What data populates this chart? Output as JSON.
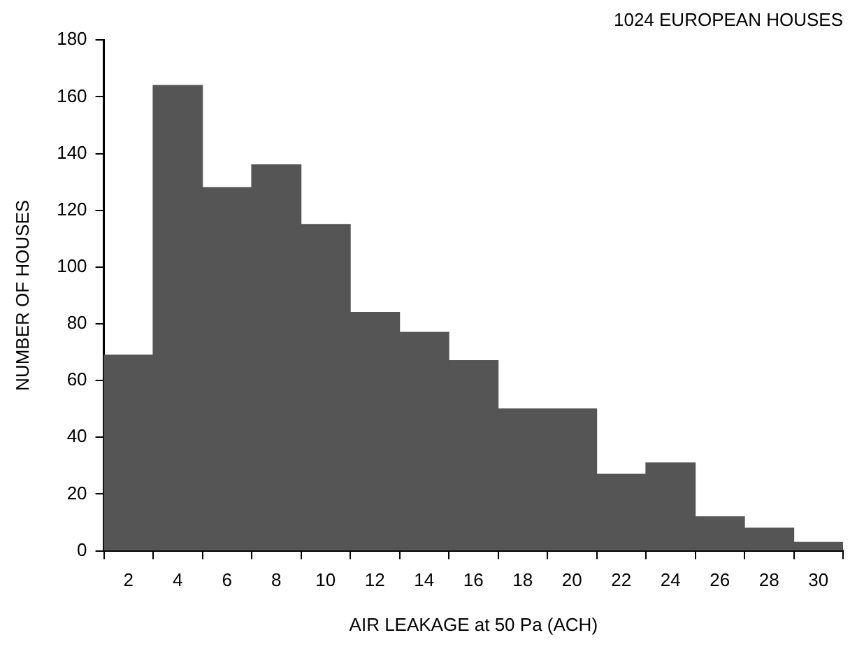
{
  "chart_data": {
    "type": "histogram",
    "title": "1024 EUROPEAN HOUSES",
    "xlabel": "AIR LEAKAGE at 50 Pa (ACH)",
    "ylabel": "NUMBER OF HOUSES",
    "bins": [
      1,
      3,
      5,
      7,
      9,
      11,
      13,
      15,
      17,
      19,
      21,
      23,
      25,
      27,
      29,
      31
    ],
    "values": [
      69,
      164,
      128,
      136,
      115,
      84,
      77,
      67,
      50,
      50,
      27,
      31,
      12,
      8,
      3
    ],
    "color": "#555555",
    "xlim": [
      1,
      31
    ],
    "xticks": [
      2,
      4,
      6,
      8,
      10,
      12,
      14,
      16,
      18,
      20,
      22,
      24,
      26,
      28,
      30
    ],
    "ylim": [
      0,
      180
    ],
    "yticks": [
      0,
      20,
      40,
      60,
      80,
      100,
      120,
      140,
      160,
      180
    ],
    "grid": false,
    "legend": false
  }
}
